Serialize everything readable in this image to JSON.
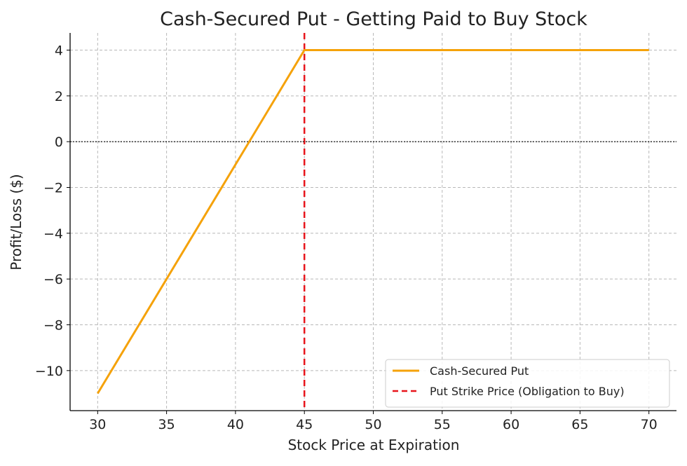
{
  "chart_data": {
    "type": "line",
    "title": "Cash-Secured Put - Getting Paid to Buy Stock",
    "xlabel": "Stock Price at Expiration",
    "ylabel": "Profit/Loss ($)",
    "xlim": [
      28,
      72
    ],
    "ylim": [
      -11.75,
      4.75
    ],
    "xticks": [
      30,
      35,
      40,
      45,
      50,
      55,
      60,
      65,
      70
    ],
    "xtick_labels": [
      "30",
      "35",
      "40",
      "45",
      "50",
      "55",
      "60",
      "65",
      "70"
    ],
    "yticks": [
      4,
      2,
      0,
      -2,
      -4,
      -6,
      -8,
      -10
    ],
    "ytick_labels": [
      "4",
      "2",
      "0",
      "−2",
      "−4",
      "−6",
      "−8",
      "−10"
    ],
    "grid": true,
    "legend_position": "lower-right",
    "series": [
      {
        "name": "Cash-Secured Put",
        "color": "#f5a20a",
        "style": "solid",
        "x": [
          30,
          45,
          70
        ],
        "y": [
          -11,
          4,
          4
        ]
      }
    ],
    "reference_lines": [
      {
        "name": "Put Strike Price (Obligation to Buy)",
        "orientation": "vertical",
        "x": 45,
        "color": "#e8141b",
        "style": "dashed"
      },
      {
        "orientation": "horizontal",
        "y": 0,
        "color": "#000000",
        "style": "dotted"
      }
    ]
  }
}
